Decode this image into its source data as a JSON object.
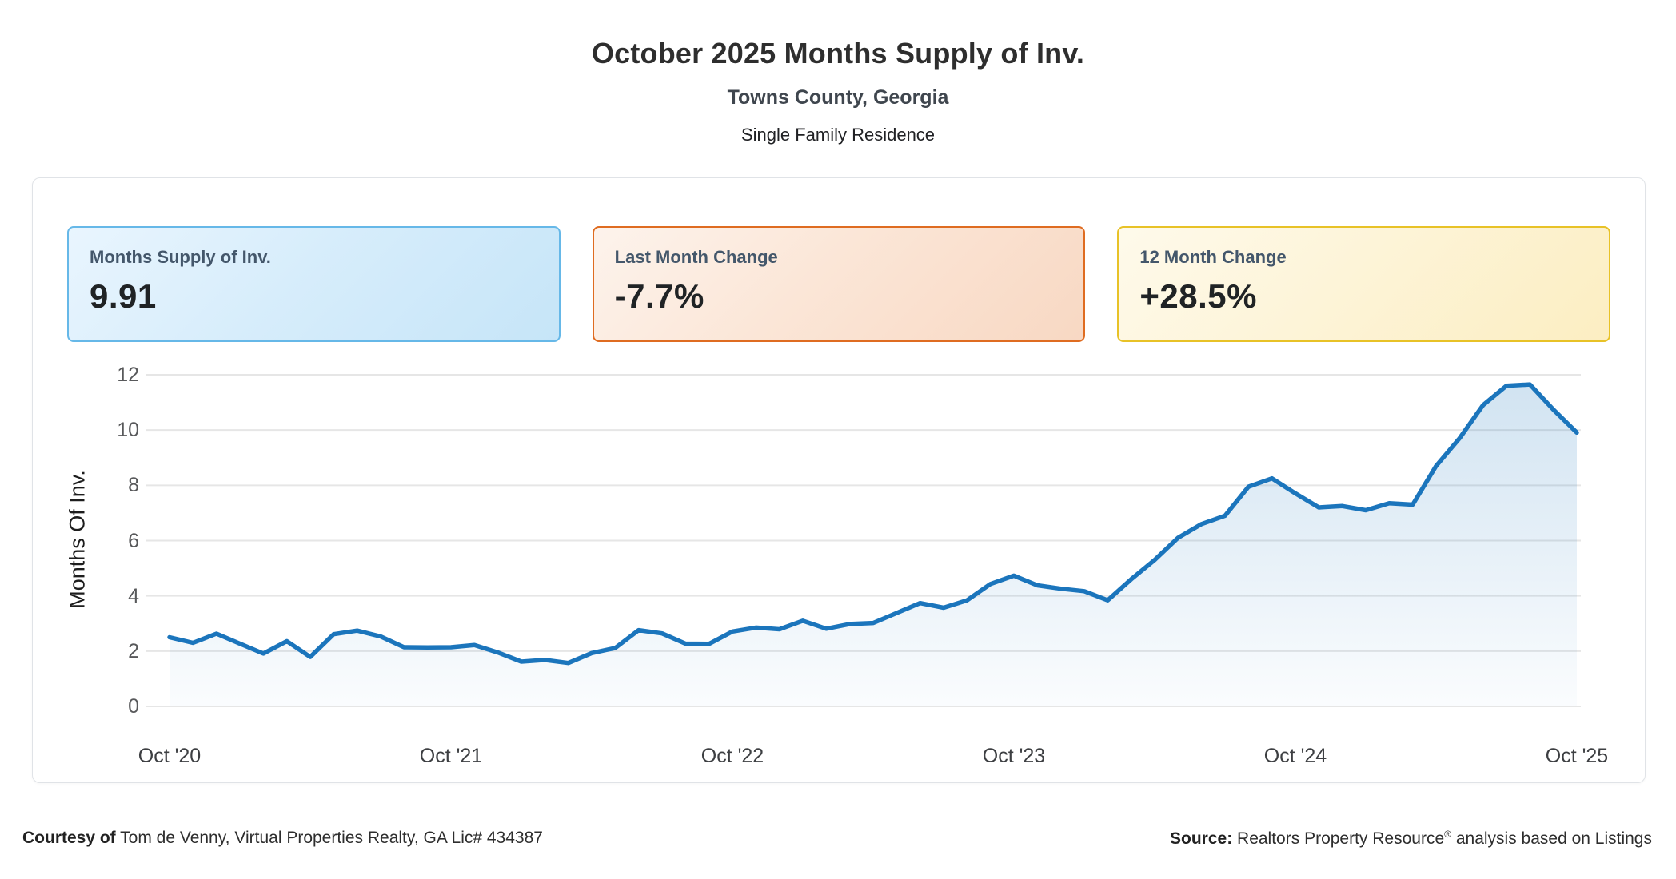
{
  "header": {
    "title": "October 2025 Months Supply of Inv.",
    "subtitle": "Towns County, Georgia",
    "property_type": "Single Family Residence"
  },
  "stat_cards": [
    {
      "label": "Months Supply of Inv.",
      "value": "9.91"
    },
    {
      "label": "Last Month Change",
      "value": "-7.7%"
    },
    {
      "label": "12 Month Change",
      "value": "+28.5%"
    }
  ],
  "card_colors": {
    "blue_border": "#66b8e8",
    "orange_border": "#df6c21",
    "yellow_border": "#e8c227"
  },
  "chart_data": {
    "type": "area",
    "title": "October 2025 Months Supply of Inv.",
    "ylabel": "Months Of Inv.",
    "xlabel": "",
    "grid": true,
    "ylim": [
      0,
      12
    ],
    "yticks": [
      0,
      2,
      4,
      6,
      8,
      10,
      12
    ],
    "x_tick_labels": [
      "Oct '20",
      "Oct '21",
      "Oct '22",
      "Oct '23",
      "Oct '24",
      "Oct '25"
    ],
    "x_tick_month_indices": [
      0,
      12,
      24,
      36,
      48,
      60
    ],
    "start_month": "Oct 2020",
    "end_month": "Oct 2025",
    "frequency": "monthly",
    "line_color": "#1b75bc",
    "fill_top": "rgba(27,117,188,0.20)",
    "fill_bottom": "rgba(27,117,188,0.02)",
    "grid_color": "#e6e6e6",
    "values": [
      2.5,
      2.3,
      2.63,
      2.27,
      1.91,
      2.36,
      1.79,
      2.61,
      2.74,
      2.53,
      2.14,
      2.13,
      2.14,
      2.22,
      1.95,
      1.62,
      1.68,
      1.57,
      1.93,
      2.11,
      2.76,
      2.64,
      2.27,
      2.26,
      2.71,
      2.85,
      2.79,
      3.1,
      2.81,
      2.98,
      3.02,
      3.38,
      3.74,
      3.57,
      3.84,
      4.43,
      4.73,
      4.38,
      4.26,
      4.17,
      3.84,
      4.6,
      5.3,
      6.1,
      6.6,
      6.9,
      7.95,
      8.25,
      7.71,
      7.2,
      7.25,
      7.1,
      7.35,
      7.3,
      8.7,
      9.7,
      10.9,
      11.6,
      11.65,
      10.74,
      9.91
    ]
  },
  "footer": {
    "courtesy_label": "Courtesy of",
    "courtesy_text": " Tom de Venny, Virtual Properties Realty, GA Lic# 434387",
    "source_label": "Source:",
    "source_text_pre": " Realtors Property Resource",
    "source_reg_mark": "®",
    "source_text_post": " analysis based on Listings"
  }
}
